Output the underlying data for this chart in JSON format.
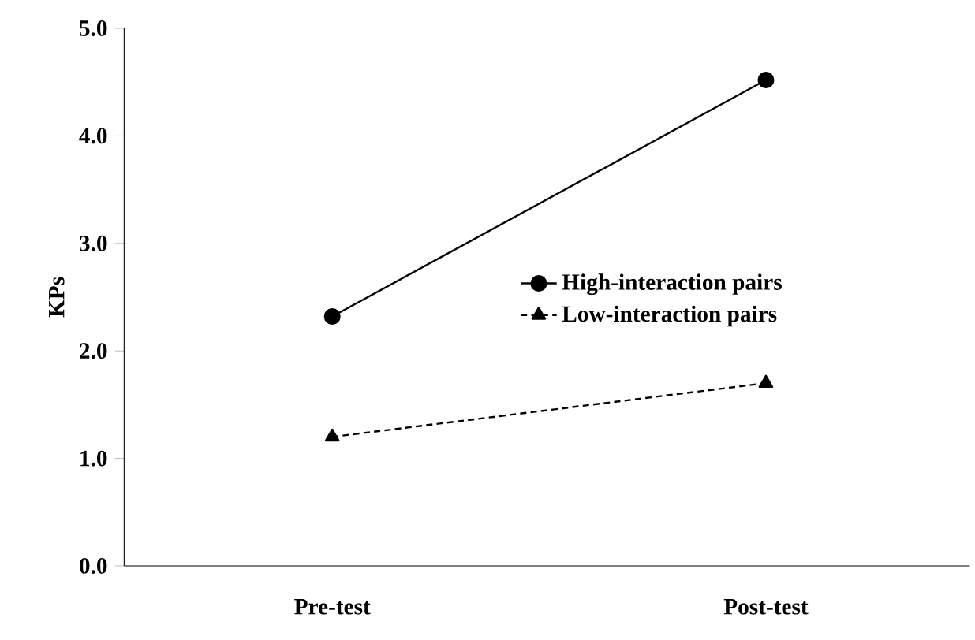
{
  "chart_data": {
    "type": "line",
    "ylabel": "KPs",
    "categories": [
      "Pre-test",
      "Post-test"
    ],
    "series": [
      {
        "name": "High-interaction pairs",
        "color": "#000000",
        "marker": "circle",
        "line_style": "solid",
        "values": [
          2.32,
          4.52
        ]
      },
      {
        "name": "Low-interaction pairs",
        "color": "#000000",
        "marker": "triangle",
        "line_style": "dashed",
        "values": [
          1.2,
          1.7
        ]
      }
    ],
    "ylim": [
      0,
      5
    ],
    "yticks": [
      {
        "value": 0,
        "label": "0.0"
      },
      {
        "value": 1,
        "label": "1.0"
      },
      {
        "value": 2,
        "label": "2.0"
      },
      {
        "value": 3,
        "label": "3.0"
      },
      {
        "value": 4,
        "label": "4.0"
      },
      {
        "value": 5,
        "label": "5.0"
      }
    ],
    "grid": false,
    "legend": "right"
  }
}
